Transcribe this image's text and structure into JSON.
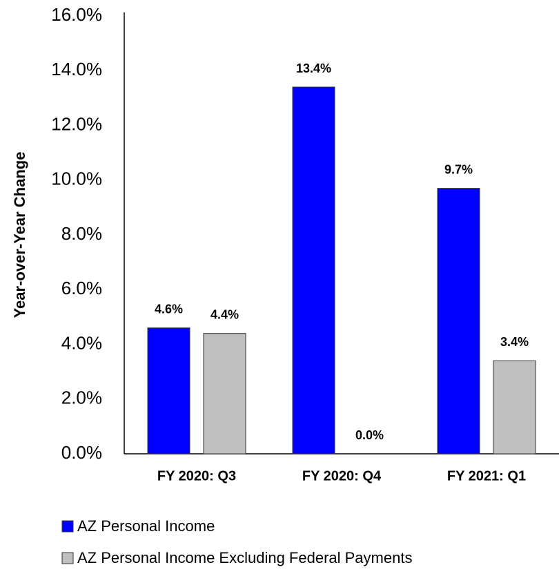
{
  "chart_data": {
    "type": "bar",
    "ylabel": "Year-over-Year Change",
    "categories": [
      "FY 2020: Q3",
      "FY 2020: Q4",
      "FY 2021: Q1"
    ],
    "series": [
      {
        "name": "AZ Personal Income",
        "color": "#0000ff",
        "values": [
          4.6,
          13.4,
          9.7
        ],
        "value_labels": [
          "4.6%",
          "13.4%",
          "9.7%"
        ]
      },
      {
        "name": "AZ Personal Income Excluding Federal Payments",
        "color": "#bfbfbf",
        "values": [
          4.4,
          0.0,
          3.4
        ],
        "value_labels": [
          "4.4%",
          "0.0%",
          "3.4%"
        ]
      }
    ],
    "ylim": [
      0,
      16
    ],
    "yticks": [
      {
        "value": 0,
        "label": "0.0%"
      },
      {
        "value": 2,
        "label": "2.0%"
      },
      {
        "value": 4,
        "label": "4.0%"
      },
      {
        "value": 6,
        "label": "6.0%"
      },
      {
        "value": 8,
        "label": "8.0%"
      },
      {
        "value": 10,
        "label": "10.0%"
      },
      {
        "value": 12,
        "label": "12.0%"
      },
      {
        "value": 14,
        "label": "14.0%"
      },
      {
        "value": 16,
        "label": "16.0%"
      }
    ],
    "legend": "bottom-left",
    "grid": false
  }
}
